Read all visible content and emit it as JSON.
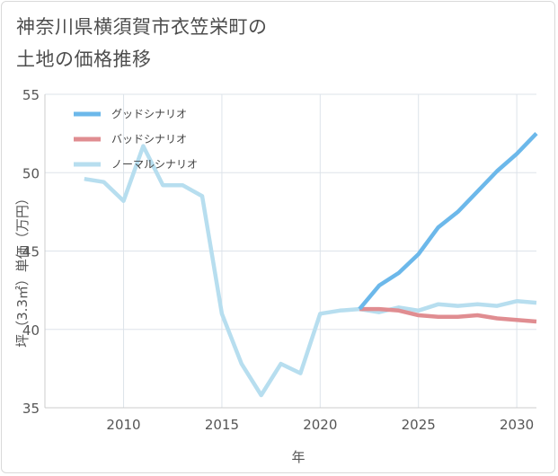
{
  "chart_data": {
    "type": "line",
    "title": [
      "神奈川県横須賀市衣笠栄町の",
      "土地の価格推移"
    ],
    "xlabel": "年",
    "ylabel": "坪（3.3㎡）単価（万円）",
    "xlim": [
      2006,
      2031
    ],
    "ylim": [
      35,
      55
    ],
    "xticks": [
      2010,
      2015,
      2020,
      2025,
      2030
    ],
    "yticks": [
      35,
      40,
      45,
      50,
      55
    ],
    "grid": true,
    "legend_position": "top-left",
    "series": [
      {
        "name": "グッドシナリオ",
        "color": "#6cb8ea",
        "x": [
          2022,
          2023,
          2024,
          2025,
          2026,
          2027,
          2028,
          2029,
          2030,
          2031
        ],
        "y": [
          41.3,
          42.8,
          43.6,
          44.8,
          46.5,
          47.5,
          48.8,
          50.1,
          51.2,
          52.5
        ]
      },
      {
        "name": "バッドシナリオ",
        "color": "#e08d91",
        "x": [
          2022,
          2023,
          2024,
          2025,
          2026,
          2027,
          2028,
          2029,
          2030,
          2031
        ],
        "y": [
          41.3,
          41.3,
          41.2,
          40.9,
          40.8,
          40.8,
          40.9,
          40.7,
          40.6,
          40.5
        ]
      },
      {
        "name": "ノーマルシナリオ",
        "color": "#b7deef",
        "x": [
          2008,
          2009,
          2010,
          2011,
          2012,
          2013,
          2014,
          2015,
          2016,
          2017,
          2018,
          2019,
          2020,
          2021,
          2022,
          2023,
          2024,
          2025,
          2026,
          2027,
          2028,
          2029,
          2030,
          2031
        ],
        "y": [
          49.6,
          49.4,
          48.2,
          51.7,
          49.2,
          49.2,
          48.5,
          41.0,
          37.8,
          35.8,
          37.8,
          37.2,
          41.0,
          41.2,
          41.3,
          41.1,
          41.4,
          41.2,
          41.6,
          41.5,
          41.6,
          41.5,
          41.8,
          41.7
        ]
      }
    ]
  }
}
